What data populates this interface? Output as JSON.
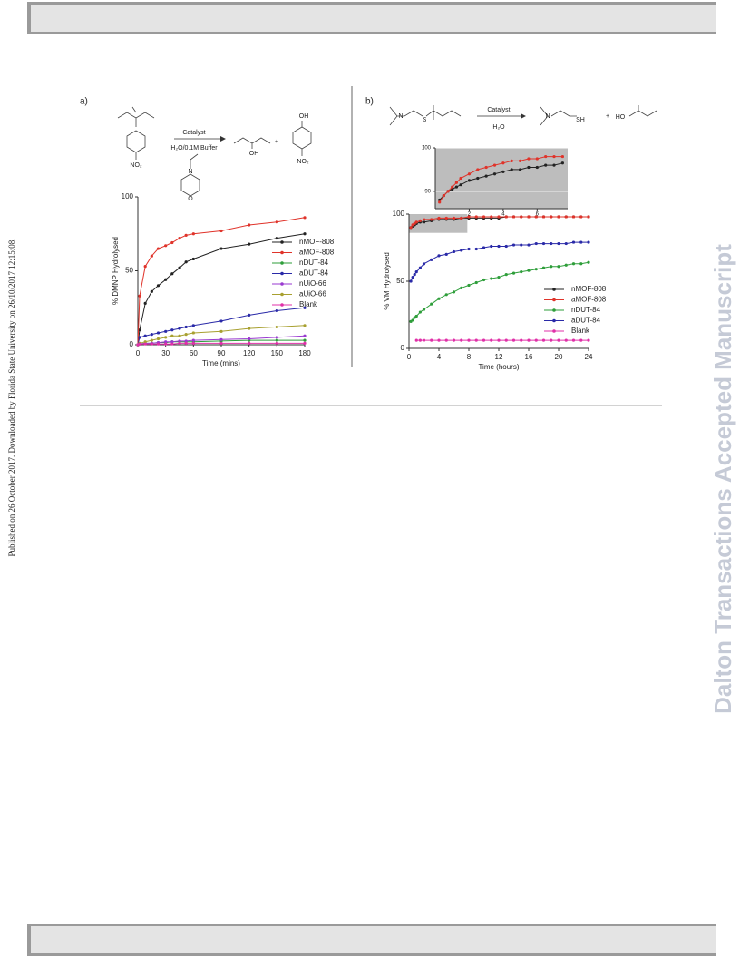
{
  "side_note": "Published on 26 October 2017. Downloaded by Florida State University on 26/10/2017 12:15:08.",
  "watermark": "Dalton Transactions Accepted Manuscript",
  "figure": {
    "panel_labels": [
      "a)",
      "b)"
    ],
    "scheme_a": {
      "catalyst": "Catalyst",
      "conditions": "H₂O/0.1M Buffer",
      "nitro_1": "NO₂",
      "morpholine_n": "N",
      "morpholine_o": "O",
      "acid_oh": "OH",
      "plus": "+",
      "phenol_oh": "OH",
      "nitro_2": "NO₂"
    },
    "scheme_b": {
      "amine_n_1": "N",
      "sulfur": "S",
      "catalyst": "Catalyst",
      "conditions": "H₂O",
      "amine_n_2": "N",
      "thiol": "SH",
      "plus": "+",
      "hydroxyl": "HO"
    }
  },
  "chart_data": [
    {
      "type": "line",
      "x_label": "Time (mins)",
      "y_label": "% DMNP Hydrolysed",
      "x": [
        0,
        2,
        8,
        15,
        22,
        30,
        37,
        45,
        52,
        60,
        90,
        120,
        150,
        180
      ],
      "xlim": [
        0,
        180
      ],
      "ylim": [
        0,
        100
      ],
      "xticks": [
        0,
        30,
        60,
        90,
        120,
        150,
        180
      ],
      "yticks": [
        0,
        50,
        100
      ],
      "grid": false,
      "series": [
        {
          "name": "nMOF-808",
          "color": "#222222",
          "values": [
            0,
            10,
            28,
            36,
            40,
            44,
            48,
            52,
            56,
            58,
            65,
            68,
            72,
            75
          ]
        },
        {
          "name": "aMOF-808",
          "color": "#e0332a",
          "values": [
            0,
            33,
            53,
            60,
            65,
            67,
            69,
            72,
            74,
            75,
            77,
            81,
            83,
            86
          ]
        },
        {
          "name": "nDUT-84",
          "color": "#2e9e3a",
          "values": [
            0,
            0.5,
            1,
            1,
            1.5,
            1.5,
            2,
            2,
            2,
            2,
            2.5,
            3,
            3,
            3
          ]
        },
        {
          "name": "aDUT-84",
          "color": "#2a2aa8",
          "values": [
            0,
            5,
            6,
            7,
            8,
            9,
            10,
            11,
            12,
            13,
            16,
            20,
            23,
            25
          ]
        },
        {
          "name": "nUiO-66",
          "color": "#9a3ad0",
          "values": [
            0,
            0.5,
            1,
            1,
            1.5,
            2,
            2,
            2.5,
            2.5,
            3,
            3.5,
            4,
            5,
            6
          ]
        },
        {
          "name": "aUiO-66",
          "color": "#a8a030",
          "values": [
            0,
            1,
            2,
            3,
            4,
            5,
            6,
            6,
            7,
            8,
            9,
            11,
            12,
            13
          ]
        },
        {
          "name": "Blank",
          "color": "#e030a8",
          "values": [
            0,
            0.5,
            0.5,
            0.5,
            0.5,
            0.5,
            0.5,
            1,
            1,
            1,
            1,
            1,
            1,
            1
          ]
        }
      ]
    },
    {
      "type": "line",
      "x_label": "Time (hours)",
      "y_label": "% VM Hydrolysed",
      "x": [
        0.25,
        0.5,
        0.75,
        1,
        1.5,
        2,
        3,
        4,
        5,
        6,
        7,
        8,
        9,
        10,
        11,
        12,
        13,
        14,
        15,
        16,
        17,
        18,
        19,
        20,
        21,
        22,
        23,
        24
      ],
      "xlim": [
        0,
        24
      ],
      "ylim": [
        0,
        100
      ],
      "xticks": [
        0,
        4,
        8,
        12,
        16,
        20,
        24
      ],
      "yticks": [
        0,
        50,
        100
      ],
      "grid": false,
      "series": [
        {
          "name": "nMOF-808",
          "color": "#222222",
          "values": [
            90,
            91,
            92,
            93,
            94,
            94,
            95,
            96,
            96,
            96,
            97,
            97,
            97,
            97,
            97,
            97,
            98,
            98,
            98,
            98,
            98,
            98,
            98,
            98,
            98,
            98,
            98,
            98
          ]
        },
        {
          "name": "aMOF-808",
          "color": "#e0332a",
          "values": [
            90,
            92,
            93,
            94,
            95,
            96,
            96,
            97,
            97,
            97,
            97,
            98,
            98,
            98,
            98,
            98,
            98,
            98,
            98,
            98,
            98,
            98,
            98,
            98,
            98,
            98,
            98,
            98
          ]
        },
        {
          "name": "nDUT-84",
          "color": "#2e9e3a",
          "values": [
            20,
            21,
            23,
            24,
            27,
            29,
            33,
            37,
            40,
            42,
            45,
            47,
            49,
            51,
            52,
            53,
            55,
            56,
            57,
            58,
            59,
            60,
            61,
            61,
            62,
            63,
            63,
            64
          ]
        },
        {
          "name": "aDUT-84",
          "color": "#2a2aa8",
          "values": [
            50,
            53,
            55,
            57,
            60,
            63,
            66,
            69,
            70,
            72,
            73,
            74,
            74,
            75,
            76,
            76,
            76,
            77,
            77,
            77,
            78,
            78,
            78,
            78,
            78,
            79,
            79,
            79
          ]
        },
        {
          "name": "Blank",
          "color": "#e030a8",
          "values": [
            null,
            null,
            null,
            6,
            6,
            6,
            6,
            6,
            6,
            6,
            6,
            6,
            6,
            6,
            6,
            6,
            6,
            6,
            6,
            6,
            6,
            6,
            6,
            6,
            6,
            6,
            6,
            6
          ]
        }
      ]
    },
    {
      "type": "line",
      "x": [
        0.25,
        0.5,
        0.75,
        1,
        1.25,
        1.5,
        2,
        2.5,
        3,
        3.5,
        4,
        4.5,
        5,
        5.5,
        6,
        6.5,
        7,
        7.5
      ],
      "xlim": [
        0,
        7.8
      ],
      "ylim": [
        86,
        100
      ],
      "xticks": [
        2,
        4,
        6
      ],
      "yticks": [
        90,
        100
      ],
      "grid": true,
      "series": [
        {
          "color": "#222222",
          "values": [
            88,
            89,
            90,
            90.5,
            91,
            91.5,
            92.5,
            93,
            93.5,
            94,
            94.5,
            95,
            95,
            95.5,
            95.5,
            96,
            96,
            96.5
          ]
        },
        {
          "color": "#e0332a",
          "values": [
            87.5,
            89,
            90,
            91,
            92,
            93,
            94,
            95,
            95.5,
            96,
            96.5,
            97,
            97,
            97.5,
            97.5,
            98,
            98,
            98
          ]
        }
      ]
    }
  ]
}
